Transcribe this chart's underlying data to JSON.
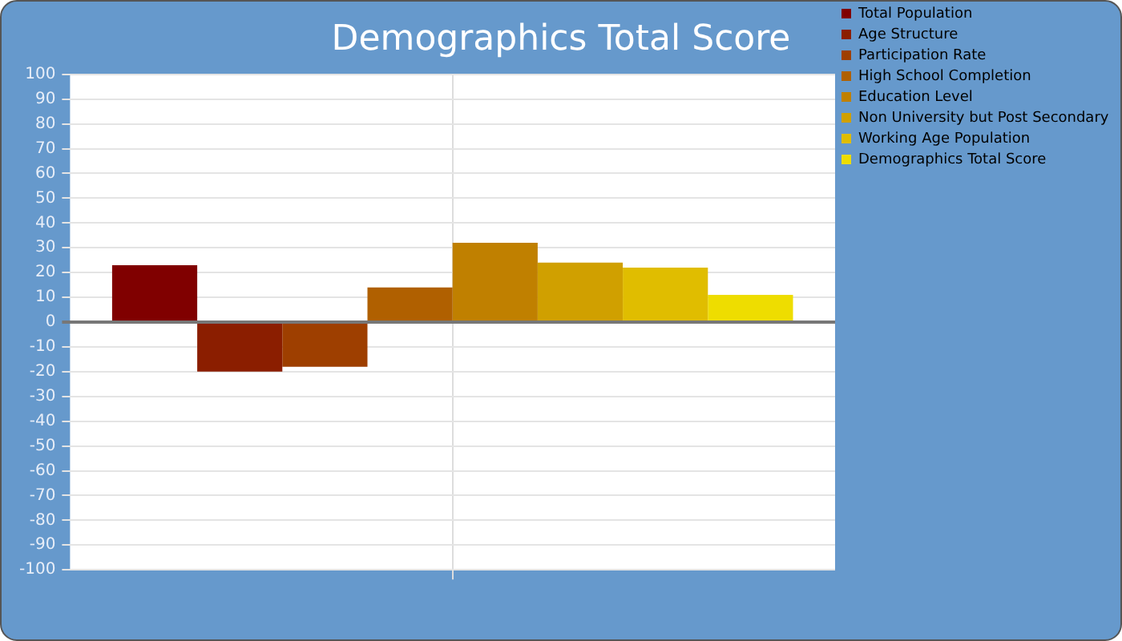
{
  "chart_data": {
    "type": "bar",
    "title": "Demographics Total Score",
    "categories": [
      null
    ],
    "series": [
      {
        "name": "Total Population",
        "color": "#800000",
        "values": [
          23
        ]
      },
      {
        "name": "Age Structure",
        "color": "#8b1e00",
        "values": [
          -20
        ]
      },
      {
        "name": "Participation Rate",
        "color": "#9e3f00",
        "values": [
          -18
        ]
      },
      {
        "name": "High School Completion",
        "color": "#b06000",
        "values": [
          14
        ]
      },
      {
        "name": "Education Level",
        "color": "#c08000",
        "values": [
          32
        ]
      },
      {
        "name": "Non University but Post Secondary",
        "color": "#d0a000",
        "values": [
          24
        ]
      },
      {
        "name": "Working Age Population",
        "color": "#e0bd00",
        "values": [
          22
        ]
      },
      {
        "name": "Demographics Total Score",
        "color": "#eedd00",
        "values": [
          11
        ]
      }
    ],
    "ylim": [
      -100,
      100
    ],
    "yticks": [
      -100,
      -90,
      -80,
      -70,
      -60,
      -50,
      -40,
      -30,
      -20,
      -10,
      0,
      10,
      20,
      30,
      40,
      50,
      60,
      70,
      80,
      90,
      100
    ],
    "grid": true,
    "legend": "right"
  }
}
